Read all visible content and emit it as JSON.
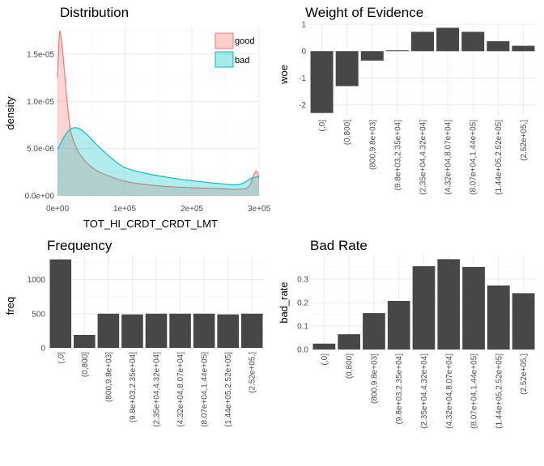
{
  "chart_data": [
    {
      "type": "area",
      "title": "Distribution",
      "xlabel": "TOT_HI_CRDT_CRDT_LMT",
      "ylabel": "density",
      "xlim": [
        0,
        300000
      ],
      "ylim": [
        0,
        1.8e-05
      ],
      "x_ticks": [
        {
          "value": 0,
          "label": "0e+00"
        },
        {
          "value": 100000,
          "label": "1e+05"
        },
        {
          "value": 200000,
          "label": "2e+05"
        },
        {
          "value": 300000,
          "label": "3e+05"
        }
      ],
      "y_ticks": [
        {
          "value": 0,
          "label": "0.0e+00"
        },
        {
          "value": 5e-06,
          "label": "5.0e-06"
        },
        {
          "value": 1e-05,
          "label": "1.0e-05"
        },
        {
          "value": 1.5e-05,
          "label": "1.5e-05"
        }
      ],
      "grid": true,
      "legend": "top-right",
      "series": [
        {
          "name": "good",
          "color": "#f8766d",
          "x": [
            0,
            3000,
            6000,
            10000,
            15000,
            20000,
            30000,
            45000,
            60000,
            80000,
            100000,
            130000,
            160000,
            200000,
            240000,
            270000,
            285000,
            295000,
            300000
          ],
          "y": [
            1.25e-05,
            1.72e-05,
            1.64e-05,
            1.35e-05,
            9.5e-06,
            6.8e-06,
            4.8e-06,
            3.4e-06,
            2.6e-06,
            2e-06,
            1.55e-06,
            1.2e-06,
            1e-06,
            8.5e-07,
            7.5e-07,
            7e-07,
            1e-06,
            2.6e-06,
            1.9e-06
          ]
        },
        {
          "name": "bad",
          "color": "#00bfc4",
          "x": [
            0,
            5000,
            12000,
            20000,
            28000,
            35000,
            45000,
            60000,
            80000,
            100000,
            130000,
            160000,
            200000,
            240000,
            270000,
            290000,
            300000
          ],
          "y": [
            4.9e-06,
            5.6e-06,
            6.5e-06,
            7.1e-06,
            7.2e-06,
            7e-06,
            6.4e-06,
            5.3e-06,
            4e-06,
            3e-06,
            2.4e-06,
            2e-06,
            1.6e-06,
            1.3e-06,
            1.2e-06,
            1.9e-06,
            2e-06
          ]
        }
      ]
    },
    {
      "type": "bar",
      "title": "Weight of Evidence",
      "xlabel": "",
      "ylabel": "woe",
      "ylim": [
        -2.4,
        1.0
      ],
      "y_ticks": [
        {
          "value": -2,
          "label": "-2"
        },
        {
          "value": -1,
          "label": "-1"
        },
        {
          "value": 0,
          "label": "0"
        },
        {
          "value": 1,
          "label": "1"
        }
      ],
      "grid": true,
      "bar_color": "#474747",
      "categories": [
        "(,0]",
        "(0,800]",
        "(800,9.8e+03]",
        "(9.8e+03,2.35e+04]",
        "(2.35e+04,4.32e+04]",
        "(4.32e+04,8.07e+04]",
        "(8.07e+04,1.44e+05]",
        "(1.44e+05,2.52e+05]",
        "(2.52e+05,]"
      ],
      "values": [
        -2.3,
        -1.3,
        -0.35,
        0.03,
        0.72,
        0.87,
        0.72,
        0.37,
        0.2
      ]
    },
    {
      "type": "bar",
      "title": "Frequency",
      "xlabel": "",
      "ylabel": "freq",
      "ylim": [
        0,
        1350
      ],
      "y_ticks": [
        {
          "value": 0,
          "label": "0"
        },
        {
          "value": 500,
          "label": "500"
        },
        {
          "value": 1000,
          "label": "1000"
        }
      ],
      "grid": true,
      "bar_color": "#474747",
      "categories": [
        "(,0]",
        "(0,800]",
        "(800,9.8e+03]",
        "(9.8e+03,2.35e+04]",
        "(2.35e+04,4.32e+04]",
        "(4.32e+04,8.07e+04]",
        "(8.07e+04,1.44e+05]",
        "(1.44e+05,2.52e+05]",
        "(2.52e+05,]"
      ],
      "values": [
        1295,
        190,
        500,
        490,
        500,
        500,
        500,
        490,
        500
      ]
    },
    {
      "type": "bar",
      "title": "Bad Rate",
      "xlabel": "",
      "ylabel": "bad_rate",
      "ylim": [
        0,
        0.4
      ],
      "y_ticks": [
        {
          "value": 0,
          "label": "0.0"
        },
        {
          "value": 0.1,
          "label": "0.1"
        },
        {
          "value": 0.2,
          "label": "0.2"
        },
        {
          "value": 0.3,
          "label": "0.3"
        }
      ],
      "grid": true,
      "bar_color": "#474747",
      "categories": [
        "(,0]",
        "(0,800]",
        "(800,9.8e+03]",
        "(9.8e+03,2.35e+04]",
        "(2.35e+04,4.32e+04]",
        "(4.32e+04,8.07e+04]",
        "(8.07e+04,1.44e+05]",
        "(1.44e+05,2.52e+05]",
        "(2.52e+05,]"
      ],
      "values": [
        0.025,
        0.065,
        0.155,
        0.207,
        0.355,
        0.385,
        0.352,
        0.273,
        0.24
      ]
    }
  ]
}
